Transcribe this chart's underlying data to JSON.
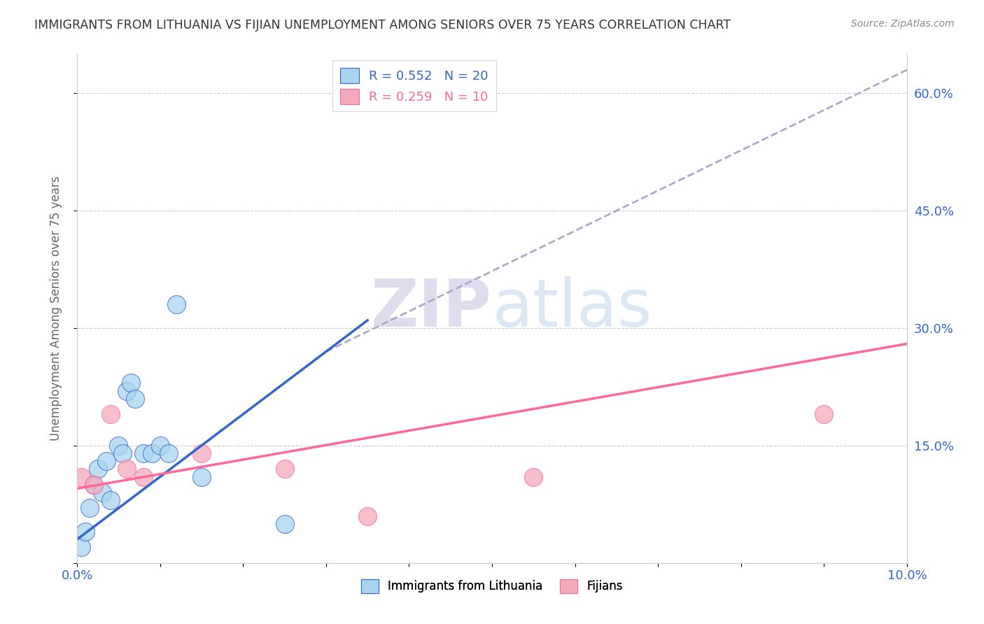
{
  "title": "IMMIGRANTS FROM LITHUANIA VS FIJIAN UNEMPLOYMENT AMONG SENIORS OVER 75 YEARS CORRELATION CHART",
  "source": "Source: ZipAtlas.com",
  "ylabel": "Unemployment Among Seniors over 75 years",
  "xlim": [
    0.0,
    10.0
  ],
  "ylim": [
    0.0,
    65.0
  ],
  "xticks": [
    0.0,
    1.0,
    2.0,
    3.0,
    4.0,
    5.0,
    6.0,
    7.0,
    8.0,
    9.0,
    10.0
  ],
  "xtick_labels": [
    "0.0%",
    "",
    "",
    "",
    "",
    "",
    "",
    "",
    "",
    "",
    "10.0%"
  ],
  "yticks": [
    0.0,
    15.0,
    30.0,
    45.0,
    60.0
  ],
  "ytick_labels_right": [
    "",
    "15.0%",
    "30.0%",
    "45.0%",
    "60.0%"
  ],
  "legend1_label": "R = 0.552   N = 20",
  "legend2_label": "R = 0.259   N = 10",
  "legend_bottom1": "Immigrants from Lithuania",
  "legend_bottom2": "Fijians",
  "blue_scatter_x": [
    0.05,
    0.1,
    0.15,
    0.2,
    0.25,
    0.3,
    0.35,
    0.4,
    0.5,
    0.55,
    0.6,
    0.65,
    0.7,
    0.8,
    0.9,
    1.0,
    1.1,
    1.2,
    1.5,
    2.5
  ],
  "blue_scatter_y": [
    2.0,
    4.0,
    7.0,
    10.0,
    12.0,
    9.0,
    13.0,
    8.0,
    15.0,
    14.0,
    22.0,
    23.0,
    21.0,
    14.0,
    14.0,
    15.0,
    14.0,
    33.0,
    11.0,
    5.0
  ],
  "pink_scatter_x": [
    0.05,
    0.2,
    0.4,
    0.6,
    0.8,
    1.5,
    2.5,
    3.5,
    5.5,
    9.0
  ],
  "pink_scatter_y": [
    11.0,
    10.0,
    19.0,
    12.0,
    11.0,
    14.0,
    12.0,
    6.0,
    11.0,
    19.0
  ],
  "blue_line_x": [
    0.0,
    3.5
  ],
  "blue_line_y": [
    3.0,
    31.0
  ],
  "pink_line_x": [
    0.0,
    10.0
  ],
  "pink_line_y": [
    9.5,
    28.0
  ],
  "dashed_line_x": [
    3.0,
    10.0
  ],
  "dashed_line_y": [
    27.0,
    63.0
  ],
  "blue_color": "#A8D4F0",
  "pink_color": "#F5AABC",
  "blue_line_color": "#3366CC",
  "pink_line_color": "#FF6699",
  "dashed_color": "#AAAACC",
  "title_color": "#333333",
  "axis_label_color": "#666666",
  "tick_color": "#3366CC",
  "watermark_color": "#DDDDEE"
}
